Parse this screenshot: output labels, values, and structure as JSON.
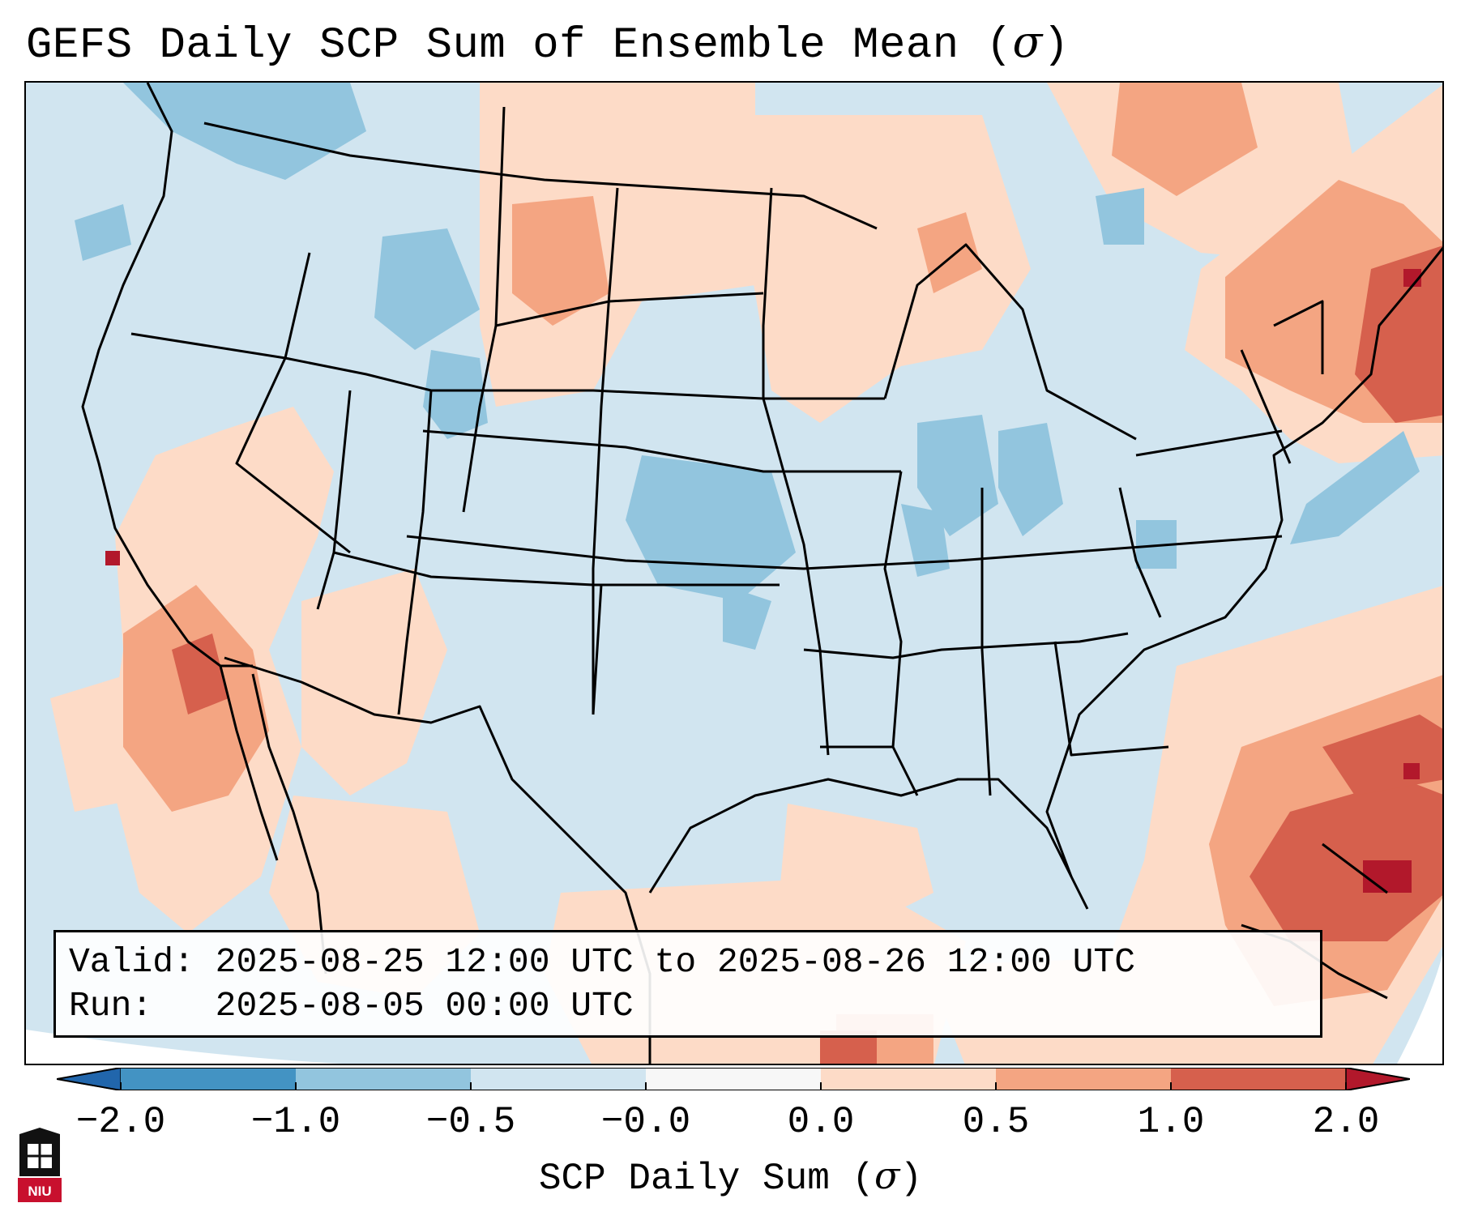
{
  "title_text": "GEFS Daily SCP Sum of Ensemble Mean (",
  "title_symbol": "σ",
  "title_close": ")",
  "info": {
    "valid_label": "Valid:",
    "valid_value": "2025-08-25 12:00 UTC to 2025-08-26 12:00 UTC",
    "run_label": "Run:",
    "run_value": "2025-08-05 00:00 UTC"
  },
  "colorbar": {
    "ticks": [
      "−2.0",
      "−1.0",
      "−0.5",
      "−0.0",
      "0.0",
      "0.5",
      "1.0",
      "2.0"
    ],
    "bins": [
      {
        "from": -2.0,
        "to": -1.0,
        "color": "#4393c3"
      },
      {
        "from": -1.0,
        "to": -0.5,
        "color": "#92c5de"
      },
      {
        "from": -0.5,
        "to": -0.0,
        "color": "#d1e5f0"
      },
      {
        "from": -0.0,
        "to": 0.0,
        "color": "#f7f7f7"
      },
      {
        "from": 0.0,
        "to": 0.5,
        "color": "#fddbc7"
      },
      {
        "from": 0.5,
        "to": 1.0,
        "color": "#f4a582"
      },
      {
        "from": 1.0,
        "to": 2.0,
        "color": "#d6604d"
      }
    ],
    "under_color": "#2166ac",
    "over_color": "#b2182b",
    "label_text": "SCP Daily Sum (",
    "label_symbol": "σ",
    "label_close": ")"
  },
  "logo_text": "NIU"
}
